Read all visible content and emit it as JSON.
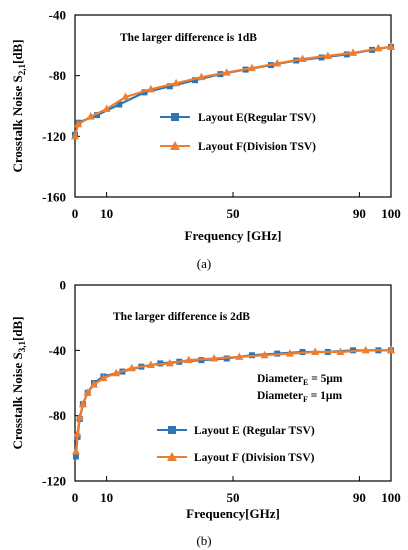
{
  "colors": {
    "series_e": "#2e75b6",
    "series_f": "#ed7d31",
    "axis": "#000000"
  },
  "chart_data": [
    {
      "type": "line",
      "panel_label": "(a)",
      "xlabel": "Frequency [GHz]",
      "ylabel": "Crosstalk Noise S",
      "ylabel_sub": "2,1",
      "ylabel_tail": "[dB]",
      "xlim": [
        0,
        100
      ],
      "ylim": [
        -160,
        -40
      ],
      "xticks": [
        0,
        10,
        50,
        90,
        100
      ],
      "yticks": [
        -40,
        -80,
        -120,
        -160
      ],
      "grid": false,
      "legend_placement": "right-middle",
      "annotations": [
        {
          "text": "The larger difference is 1dB"
        }
      ],
      "series": [
        {
          "name": "Layout E(Regular TSV)",
          "marker": "square",
          "x": [
            0,
            1,
            7,
            14,
            22,
            30,
            38,
            46,
            54,
            62,
            70,
            78,
            86,
            94,
            100
          ],
          "y": [
            -119,
            -111,
            -106,
            -99,
            -91,
            -87,
            -83,
            -79,
            -76,
            -73,
            -70,
            -68,
            -66,
            -63,
            -61
          ]
        },
        {
          "name": "Layout F(Division TSV)",
          "marker": "triangle",
          "x": [
            0,
            1,
            5,
            10,
            16,
            24,
            32,
            40,
            48,
            56,
            64,
            72,
            80,
            88,
            96,
            100
          ],
          "y": [
            -120,
            -112,
            -107,
            -102,
            -94,
            -89,
            -85,
            -81,
            -78,
            -75,
            -72,
            -69,
            -67,
            -65,
            -62,
            -61
          ]
        }
      ]
    },
    {
      "type": "line",
      "panel_label": "(b)",
      "xlabel": "Frequency[GHz]",
      "ylabel": "Crosstalk Noise S",
      "ylabel_sub": "3,1",
      "ylabel_tail": "[dB]",
      "xlim": [
        0,
        100
      ],
      "ylim": [
        -120,
        0
      ],
      "xticks": [
        0,
        10,
        50,
        90,
        100
      ],
      "yticks": [
        0,
        -40,
        -80,
        -120
      ],
      "grid": false,
      "legend_placement": "bottom-center",
      "annotations": [
        {
          "text": "The larger difference is 2dB"
        },
        {
          "text": "Diameter",
          "sub": "E",
          "tail": " = 5μm"
        },
        {
          "text": "Diameter",
          "sub": "F",
          "tail": " = 1μm"
        }
      ],
      "series": [
        {
          "name": "Layout E (Regular TSV)",
          "marker": "square",
          "x": [
            0.3,
            0.8,
            1.5,
            2.5,
            4,
            6,
            9,
            15,
            21,
            27,
            33,
            40,
            48,
            56,
            64,
            72,
            80,
            88,
            96,
            100
          ],
          "y": [
            -105,
            -93,
            -82,
            -73,
            -66,
            -60,
            -56,
            -53,
            -50,
            -48,
            -47,
            -46,
            -45,
            -43,
            -42,
            -41,
            -41,
            -40,
            -40,
            -40
          ]
        },
        {
          "name": "Layout F (Division TSV)",
          "marker": "triangle",
          "x": [
            0.3,
            0.8,
            1.5,
            2.5,
            4,
            6,
            9,
            13,
            18,
            24,
            30,
            36,
            44,
            52,
            60,
            68,
            76,
            84,
            92,
            100
          ],
          "y": [
            -102,
            -91,
            -81,
            -73,
            -66,
            -61,
            -57,
            -54,
            -51,
            -49,
            -48,
            -46,
            -45,
            -44,
            -43,
            -42,
            -41,
            -41,
            -40,
            -40
          ]
        }
      ]
    }
  ]
}
